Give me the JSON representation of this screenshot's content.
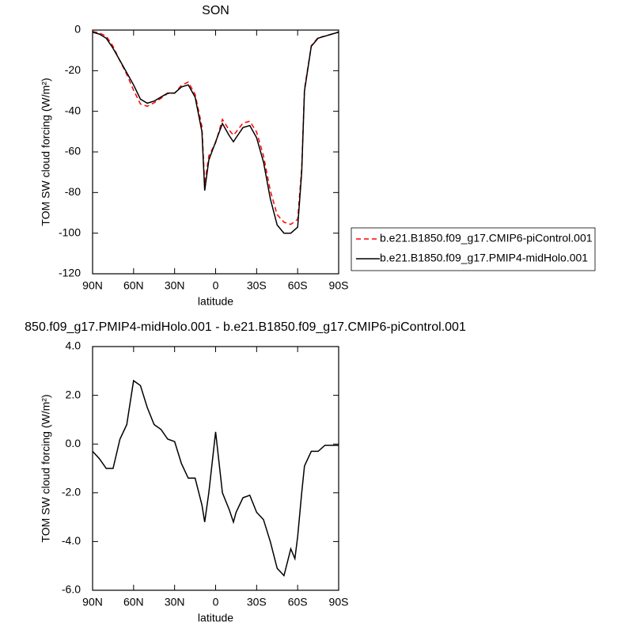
{
  "chart_data": [
    {
      "type": "line",
      "title": "SON",
      "xlabel": "latitude",
      "ylabel": "TOM SW cloud forcing (W/m²)",
      "x": [
        90,
        85,
        80,
        75,
        70,
        65,
        60,
        55,
        50,
        45,
        40,
        35,
        30,
        25,
        20,
        15,
        10,
        8,
        5,
        0,
        -5,
        -10,
        -13,
        -15,
        -20,
        -25,
        -30,
        -35,
        -40,
        -45,
        -50,
        -55,
        -60,
        -63,
        -65,
        -70,
        -75,
        -80,
        -85,
        -90
      ],
      "xlim": [
        90,
        -90
      ],
      "xticks": [
        {
          "value": 90,
          "label": "90N"
        },
        {
          "value": 60,
          "label": "60N"
        },
        {
          "value": 30,
          "label": "30N"
        },
        0,
        {
          "value": -30,
          "label": "30S"
        },
        {
          "value": -60,
          "label": "60S"
        },
        {
          "value": -90,
          "label": "90S"
        }
      ],
      "ylim": [
        -120,
        0
      ],
      "yticks": [
        0,
        -20,
        -40,
        -60,
        -80,
        -100,
        -120
      ],
      "legend": "right",
      "series": [
        {
          "name": "b.e21.B1850.f09_g17.CMIP6-piControl.001",
          "color": "#ff0000",
          "dash": true,
          "values": [
            -0.7,
            -1.4,
            -3,
            -8,
            -15.2,
            -21.8,
            -29.6,
            -36.4,
            -37.5,
            -35.8,
            -33.6,
            -31.2,
            -31.1,
            -27.2,
            -25.6,
            -31.6,
            -47.5,
            -75.8,
            -62,
            -55.5,
            -44,
            -49.3,
            -51.8,
            -50.2,
            -45.8,
            -44.9,
            -50.2,
            -61.9,
            -79,
            -90.9,
            -94.6,
            -95.7,
            -93.2,
            -68,
            -29.1,
            -7.7,
            -3.7,
            -2.95,
            -1.95,
            -0.95
          ]
        },
        {
          "name": "b.e21.B1850.f09_g17.PMIP4-midHolo.001",
          "color": "#000000",
          "dash": false,
          "values": [
            -1,
            -2,
            -4,
            -9,
            -15,
            -21,
            -27,
            -34,
            -36,
            -35,
            -33,
            -31,
            -31,
            -28,
            -27,
            -33,
            -50,
            -79,
            -64,
            -55,
            -46,
            -52,
            -55,
            -53,
            -48,
            -47,
            -53,
            -65,
            -83,
            -96,
            -100,
            -100,
            -97,
            -70,
            -30,
            -8,
            -4,
            -3,
            -2,
            -1
          ]
        }
      ]
    },
    {
      "type": "line",
      "title": "850.f09_g17.PMIP4-midHolo.001 - b.e21.B1850.f09_g17.CMIP6-piControl.001",
      "xlabel": "latitude",
      "ylabel": "TOM SW cloud forcing (W/m²)",
      "x": [
        90,
        85,
        80,
        75,
        70,
        65,
        60,
        55,
        50,
        45,
        40,
        35,
        30,
        25,
        20,
        15,
        10,
        8,
        5,
        0,
        -5,
        -10,
        -13,
        -15,
        -20,
        -25,
        -30,
        -35,
        -40,
        -45,
        -50,
        -55,
        -58,
        -60,
        -63,
        -65,
        -70,
        -75,
        -80,
        -85,
        -90
      ],
      "xlim": [
        90,
        -90
      ],
      "xticks": [
        {
          "value": 90,
          "label": "90N"
        },
        {
          "value": 60,
          "label": "60N"
        },
        {
          "value": 30,
          "label": "30N"
        },
        0,
        {
          "value": -30,
          "label": "30S"
        },
        {
          "value": -60,
          "label": "60S"
        },
        {
          "value": -90,
          "label": "90S"
        }
      ],
      "ylim": [
        -6,
        4
      ],
      "yticks": [
        {
          "value": 4,
          "label": "4.0"
        },
        {
          "value": 2,
          "label": "2.0"
        },
        {
          "value": 0,
          "label": "0.0"
        },
        {
          "value": -2,
          "label": "-2.0"
        },
        {
          "value": -4,
          "label": "-4.0"
        },
        {
          "value": -6,
          "label": "-6.0"
        }
      ],
      "series": [
        {
          "color": "#000000",
          "dash": false,
          "values": [
            -0.3,
            -0.6,
            -1.0,
            -1.0,
            0.2,
            0.8,
            2.6,
            2.4,
            1.5,
            0.8,
            0.6,
            0.2,
            0.1,
            -0.8,
            -1.4,
            -1.4,
            -2.5,
            -3.2,
            -2.0,
            0.5,
            -2.0,
            -2.7,
            -3.2,
            -2.8,
            -2.2,
            -2.1,
            -2.8,
            -3.1,
            -4.0,
            -5.1,
            -5.4,
            -4.3,
            -4.7,
            -3.8,
            -2.0,
            -0.9,
            -0.3,
            -0.3,
            -0.05,
            -0.05,
            -0.05
          ]
        }
      ]
    }
  ]
}
